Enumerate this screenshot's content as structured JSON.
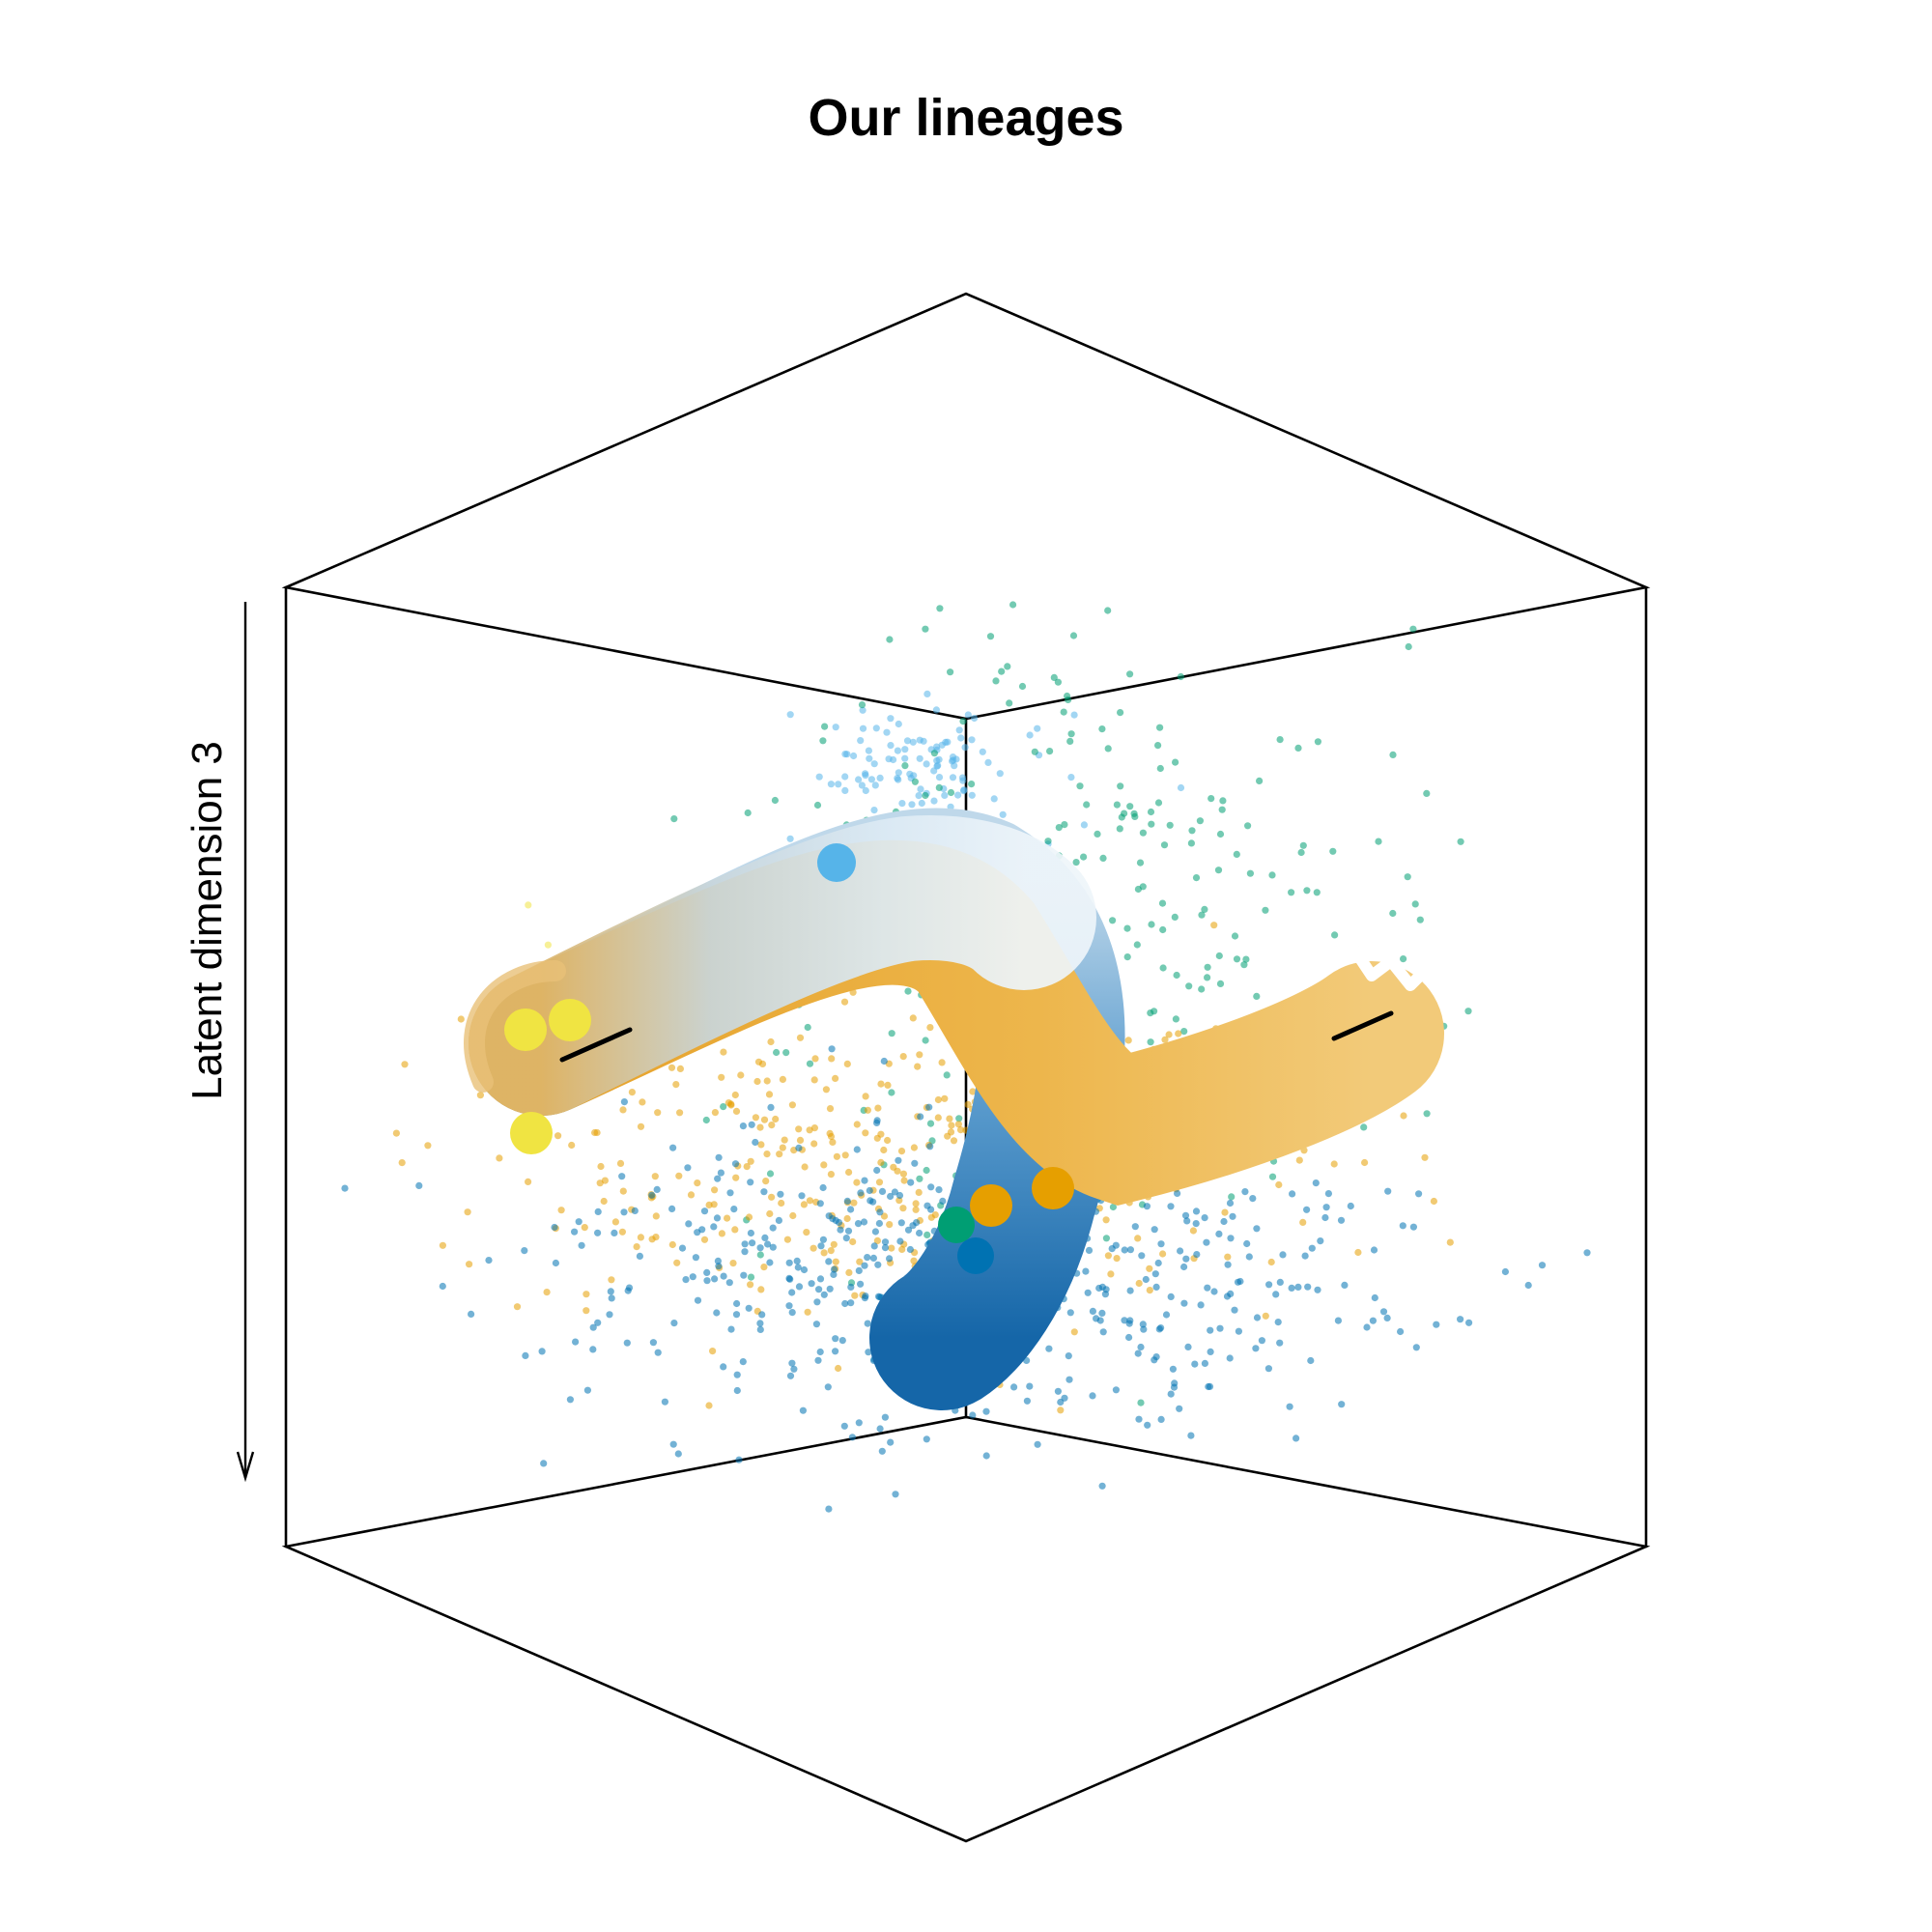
{
  "chart_data": {
    "type": "scatter",
    "projection": "3d",
    "title": "Our lineages",
    "zlabel": "Latent dimension 3",
    "grid": false,
    "legend": "none",
    "colors": {
      "cluster_light_blue": "#56B4E9",
      "cluster_green": "#009E73",
      "cluster_orange": "#E69F00",
      "cluster_dark_blue": "#0072B2",
      "cluster_yellow": "#F0E442",
      "tube_orange": "#F2B23A",
      "tube_blue": "#1F6FB0",
      "tube_pale": "#E8F2F9"
    },
    "clusters": [
      {
        "color_key": "cluster_light_blue",
        "n_points": 120
      },
      {
        "color_key": "cluster_green",
        "n_points": 330
      },
      {
        "color_key": "cluster_orange",
        "n_points": 420
      },
      {
        "color_key": "cluster_dark_blue",
        "n_points": 520
      },
      {
        "color_key": "cluster_yellow",
        "n_points": 15
      }
    ],
    "lineages": [
      {
        "from": "cluster_yellow",
        "to": "cluster_orange"
      },
      {
        "from": "cluster_yellow",
        "to": "cluster_dark_blue"
      }
    ]
  }
}
